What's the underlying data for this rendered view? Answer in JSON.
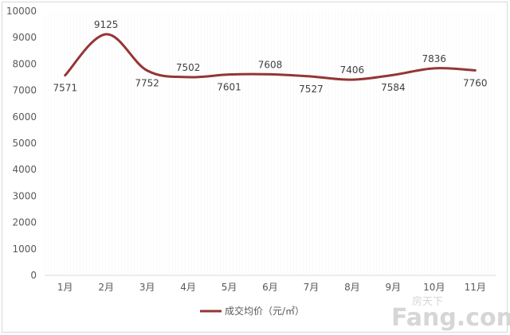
{
  "chart_data": {
    "type": "line",
    "categories": [
      "1月",
      "2月",
      "3月",
      "4月",
      "5月",
      "6月",
      "7月",
      "8月",
      "9月",
      "10月",
      "11月"
    ],
    "series": [
      {
        "name": "成交均价（元/㎡）",
        "values": [
          7571,
          9125,
          7752,
          7502,
          7601,
          7608,
          7527,
          7406,
          7584,
          7836,
          7760
        ]
      }
    ],
    "yticks": [
      "0",
      "1000",
      "2000",
      "3000",
      "4000",
      "5000",
      "6000",
      "7000",
      "8000",
      "9000",
      "10000"
    ],
    "data_labels": [
      "7571",
      "9125",
      "7752",
      "7502",
      "7601",
      "7608",
      "7527",
      "7406",
      "7584",
      "7836",
      "7760"
    ],
    "ylim": [
      0,
      10000
    ],
    "grid": false,
    "legend": "bottom",
    "line_color": "#943634",
    "smooth": true
  },
  "watermark": {
    "big": "Fang.com",
    "small": "房天下"
  }
}
